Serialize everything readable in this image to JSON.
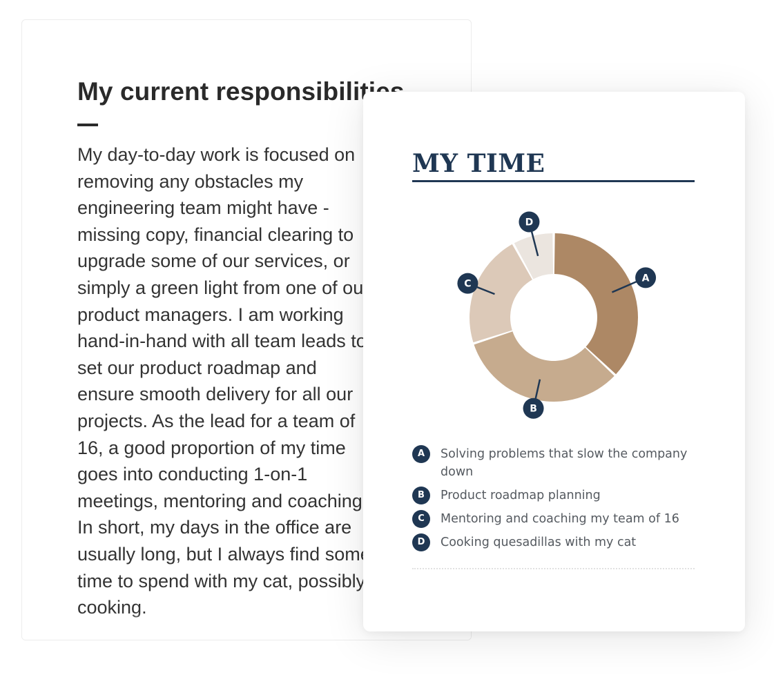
{
  "responsibilities": {
    "title": "My current responsibilities",
    "body_lines": [
      "My day-to-day work is focused on",
      "removing any obstacles my",
      "engineering team might have -",
      "missing copy, financial clearing to",
      "upgrade some of our services, or",
      "simply a green light from one of our",
      "product managers. I am working",
      "hand-in-hand with all team leads to",
      "set our product roadmap and",
      "ensure smooth delivery for all our",
      "projects. As the lead for a team of",
      "16, a good proportion of my time",
      "goes into conducting 1-on-1",
      "meetings, mentoring and coaching.",
      "In short, my days in the office are",
      "usually long, but I always find some",
      "time to spend with my cat, possibly",
      "cooking."
    ]
  },
  "my_time": {
    "title": "MY TIME",
    "colors": {
      "navy": "#1f3753",
      "segment_a": "#ad8865",
      "segment_b": "#c6ab8e",
      "segment_c": "#dcc9b8",
      "segment_d": "#ebe5df"
    }
  },
  "chart_data": {
    "type": "pie",
    "donut": true,
    "legend_placement": "bottom",
    "categories": [
      "Solving problems that slow the company down",
      "Product roadmap planning",
      "Mentoring and coaching my team of 16",
      "Cooking quesadillas with my cat"
    ],
    "markers": [
      "A",
      "B",
      "C",
      "D"
    ],
    "values": [
      37,
      33,
      22,
      8
    ],
    "colors": [
      "#ad8865",
      "#c6ab8e",
      "#dcc9b8",
      "#ebe5df"
    ]
  }
}
